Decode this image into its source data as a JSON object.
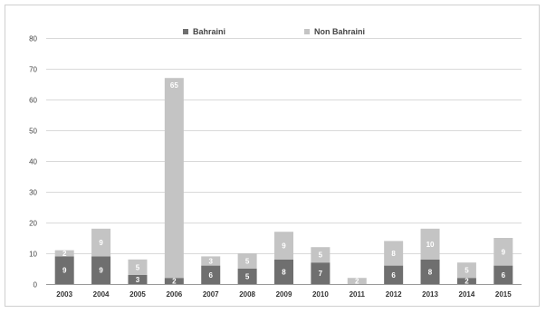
{
  "chart_data": {
    "type": "bar",
    "stacked": true,
    "title": "",
    "xlabel": "",
    "ylabel": "",
    "categories": [
      "2003",
      "2004",
      "2005",
      "2006",
      "2007",
      "2008",
      "2009",
      "2010",
      "2011",
      "2012",
      "2013",
      "2014",
      "2015"
    ],
    "series": [
      {
        "name": "Bahraini",
        "color": "#6f6f6f",
        "values": [
          9,
          9,
          3,
          2,
          6,
          5,
          8,
          7,
          0,
          6,
          8,
          2,
          6
        ],
        "labels": [
          "9",
          "9",
          "3",
          "2",
          "6",
          "5",
          "8",
          "7",
          "",
          "6",
          "8",
          "2",
          "6"
        ]
      },
      {
        "name": "Non Bahraini",
        "color": "#c4c4c4",
        "values": [
          2,
          9,
          5,
          65,
          3,
          5,
          9,
          5,
          2,
          8,
          10,
          5,
          9
        ],
        "labels": [
          "2",
          "9",
          "5",
          "65",
          "3",
          "5",
          "9",
          "5",
          "2",
          "8",
          "10",
          "5",
          "9"
        ]
      }
    ],
    "ylim": [
      0,
      80
    ],
    "yticks": [
      "0",
      "10",
      "20",
      "30",
      "40",
      "50",
      "60",
      "70",
      "80"
    ],
    "grid": true,
    "legend_position": "top-center"
  }
}
